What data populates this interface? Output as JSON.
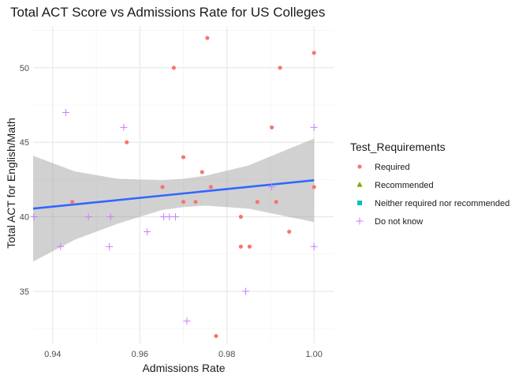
{
  "chart_data": {
    "type": "scatter",
    "title": "Total ACT Score vs Admissions Rate for US Colleges",
    "xlabel": "Admissions Rate",
    "ylabel": "Total ACT for English/Math",
    "xlim": [
      0.9355,
      1.0045
    ],
    "ylim": [
      31.5,
      52.8
    ],
    "x_ticks": [
      0.94,
      0.96,
      0.98,
      1.0
    ],
    "x_tick_labels": [
      "0.94",
      "0.96",
      "0.98",
      "1.00"
    ],
    "y_ticks": [
      35,
      40,
      45,
      50
    ],
    "y_tick_labels": [
      "35",
      "40",
      "45",
      "50"
    ],
    "grid": true,
    "legend": {
      "title": "Test_Requirements",
      "placement": "right",
      "entries": [
        {
          "label": "Required",
          "color": "#F8766D",
          "shape": "circle"
        },
        {
          "label": "Recommended",
          "color": "#7CAE00",
          "shape": "triangle"
        },
        {
          "label": "Neither required nor recommended",
          "color": "#00BFC4",
          "shape": "square"
        },
        {
          "label": "Do not know",
          "color": "#C77CFF",
          "shape": "plus"
        }
      ]
    },
    "series": [
      {
        "name": "Required",
        "color": "#F8766D",
        "shape": "circle",
        "points": [
          [
            0.9445,
            41
          ],
          [
            0.957,
            45
          ],
          [
            0.9652,
            42
          ],
          [
            0.9678,
            50
          ],
          [
            0.97,
            41
          ],
          [
            0.97,
            44
          ],
          [
            0.9728,
            41
          ],
          [
            0.9743,
            43
          ],
          [
            0.9755,
            52
          ],
          [
            0.9763,
            42
          ],
          [
            0.9775,
            32
          ],
          [
            0.9832,
            40
          ],
          [
            0.9832,
            38
          ],
          [
            0.9852,
            38
          ],
          [
            0.987,
            41
          ],
          [
            0.9903,
            46
          ],
          [
            0.9913,
            41
          ],
          [
            0.9922,
            50
          ],
          [
            0.9943,
            39
          ],
          [
            1.0,
            51
          ],
          [
            1.0,
            42
          ]
        ]
      },
      {
        "name": "Do not know",
        "color": "#C77CFF",
        "shape": "plus",
        "points": [
          [
            0.9357,
            40
          ],
          [
            0.9418,
            38
          ],
          [
            0.943,
            47
          ],
          [
            0.9482,
            40
          ],
          [
            0.953,
            38
          ],
          [
            0.9533,
            40
          ],
          [
            0.9563,
            46
          ],
          [
            0.9617,
            39
          ],
          [
            0.9655,
            40
          ],
          [
            0.9668,
            40
          ],
          [
            0.9682,
            40
          ],
          [
            0.9708,
            33
          ],
          [
            0.9843,
            35
          ],
          [
            0.9903,
            42
          ],
          [
            1.0,
            46
          ],
          [
            1.0,
            38
          ]
        ]
      }
    ],
    "trend": {
      "color": "#3366FF",
      "band_color": "#999999",
      "x": [
        0.9355,
        1.0
      ],
      "y": [
        40.55,
        42.45
      ],
      "ci_x": [
        0.9355,
        0.945,
        0.955,
        0.965,
        0.97,
        0.975,
        0.985,
        0.995,
        1.0
      ],
      "ci_low": [
        37.0,
        38.45,
        39.55,
        40.45,
        40.65,
        40.75,
        40.55,
        39.95,
        39.65
      ],
      "ci_high": [
        44.1,
        43.05,
        42.55,
        42.45,
        42.55,
        42.75,
        43.45,
        44.65,
        45.25
      ]
    }
  }
}
